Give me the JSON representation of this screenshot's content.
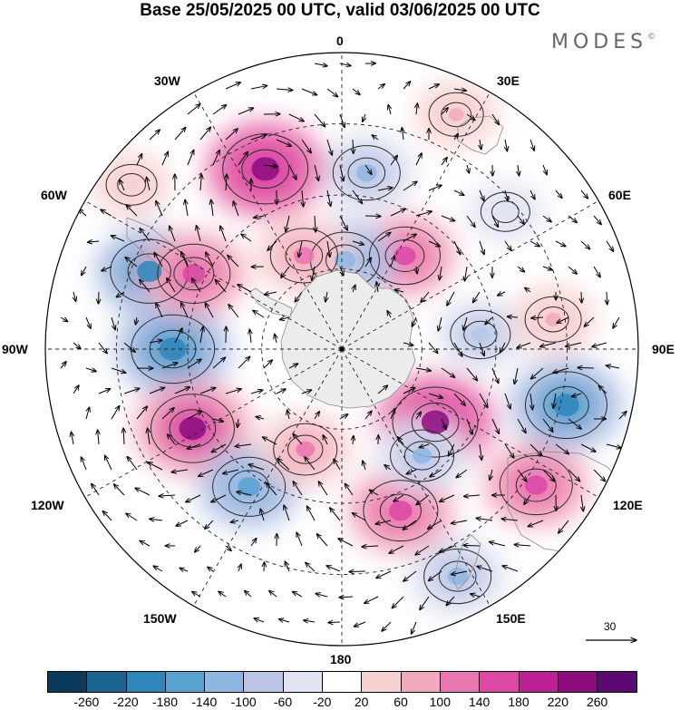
{
  "title": "Base 25/05/2025 00 UTC, valid 03/06/2025 00 UTC",
  "brand": "MODES",
  "brand_mark": "©",
  "longitude_labels": {
    "lon_0": "0",
    "lon_30e": "30E",
    "lon_60e": "60E",
    "lon_90e": "90E",
    "lon_120e": "120E",
    "lon_150e": "150E",
    "lon_180": "180",
    "lon_150w": "150W",
    "lon_120w": "120W",
    "lon_90w": "90W",
    "lon_60w": "60W",
    "lon_30w": "30W"
  },
  "vector_scale_label": "30",
  "colorbar": {
    "colors": [
      "#0b3a5a",
      "#1a6492",
      "#2f86bb",
      "#5aa2d0",
      "#8fb7e0",
      "#b8c5e6",
      "#e1e3f2",
      "#ffffff",
      "#f8d2d2",
      "#f3a9bd",
      "#ea76b0",
      "#dc48a6",
      "#bd1f94",
      "#8d0c80",
      "#5c0a72"
    ],
    "tick_labels": [
      "-260",
      "-220",
      "-180",
      "-140",
      "-100",
      "-60",
      "-20",
      "20",
      "60",
      "100",
      "140",
      "180",
      "220",
      "260"
    ]
  },
  "anomaly_centers": [
    {
      "lon": -68,
      "r": 0.7,
      "value": -190
    },
    {
      "lon": -90,
      "r": 0.57,
      "value": -220
    },
    {
      "lon": -118,
      "r": 0.57,
      "value": 220
    },
    {
      "lon": -146,
      "r": 0.56,
      "value": -160
    },
    {
      "lon": -160,
      "r": 0.36,
      "value": 110
    },
    {
      "lon": 160,
      "r": 0.58,
      "value": 170
    },
    {
      "lon": 153,
      "r": 0.86,
      "value": -130
    },
    {
      "lon": 125,
      "r": 0.8,
      "value": 160
    },
    {
      "lon": 104,
      "r": 0.78,
      "value": -210
    },
    {
      "lon": 128,
      "r": 0.4,
      "value": 230
    },
    {
      "lon": 143,
      "r": 0.45,
      "value": -110
    },
    {
      "lon": 84,
      "r": 0.47,
      "value": -90
    },
    {
      "lon": 82,
      "r": 0.72,
      "value": 70
    },
    {
      "lon": 34,
      "r": 0.38,
      "value": 150
    },
    {
      "lon": 8,
      "r": 0.6,
      "value": -130
    },
    {
      "lon": 2,
      "r": 0.3,
      "value": -140
    },
    {
      "lon": -23,
      "r": 0.66,
      "value": 230
    },
    {
      "lon": -22,
      "r": 0.34,
      "value": 130
    },
    {
      "lon": -63,
      "r": 0.56,
      "value": 160
    },
    {
      "lon": 26,
      "r": 0.88,
      "value": 60
    },
    {
      "lon": 50,
      "r": 0.72,
      "value": -30
    },
    {
      "lon": -52,
      "r": 0.9,
      "value": 40
    }
  ]
}
